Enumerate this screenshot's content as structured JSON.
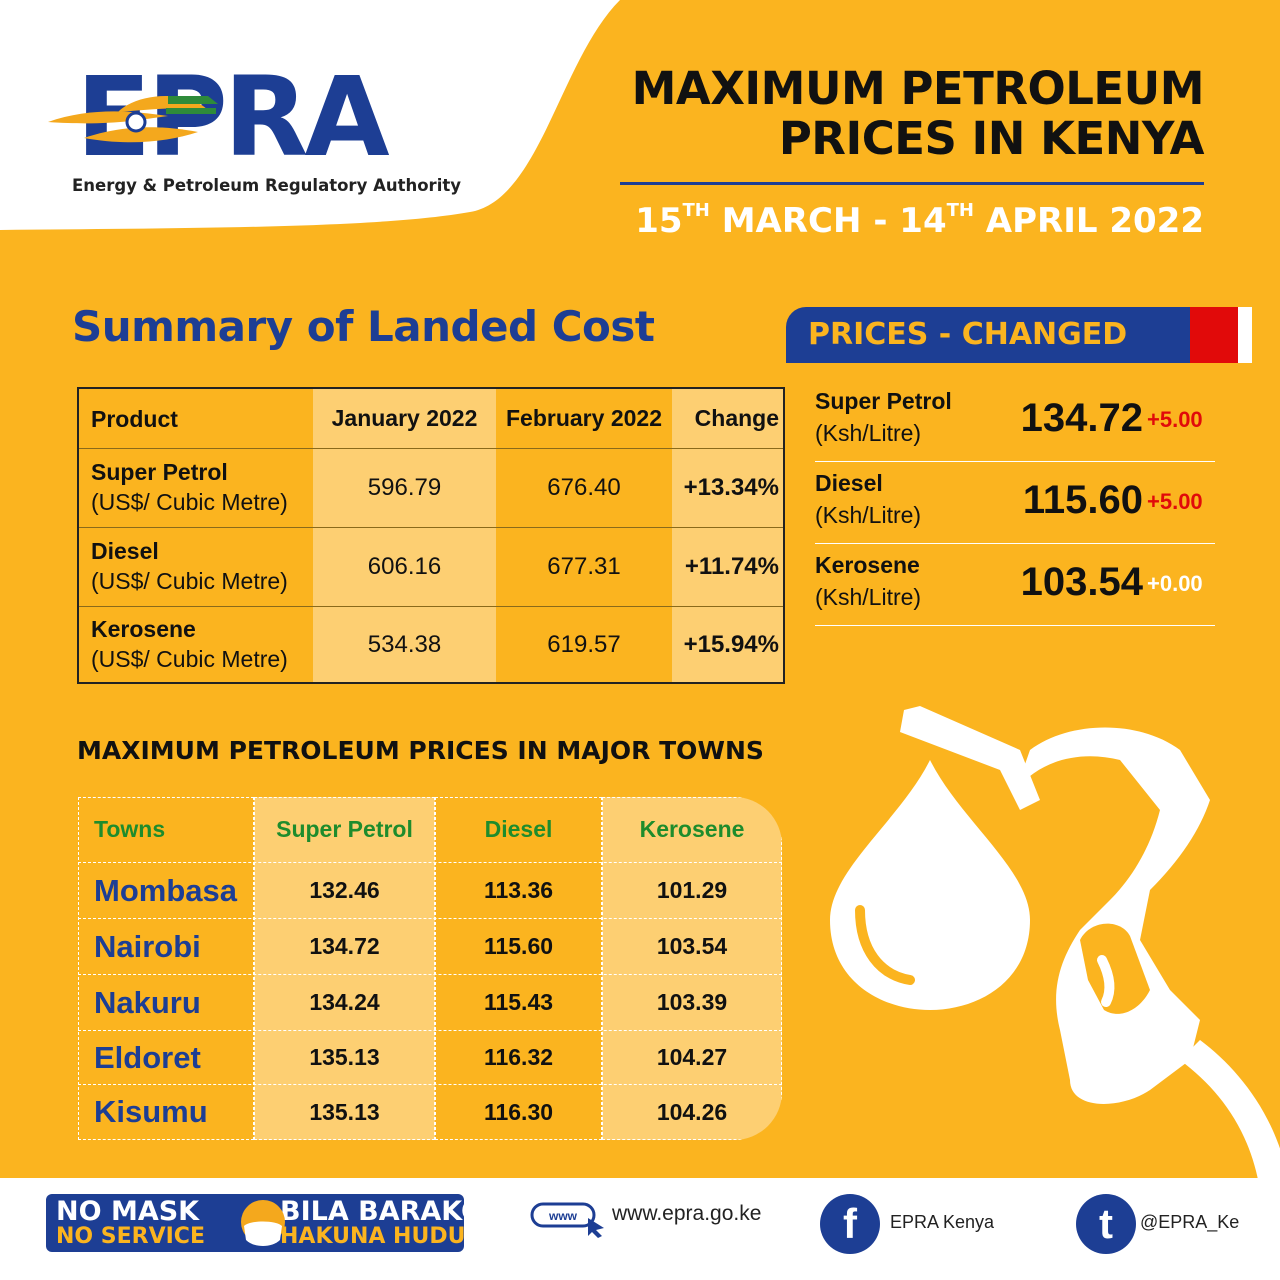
{
  "header": {
    "logo_text": "EPRA",
    "logo_subtitle": "Energy & Petroleum Regulatory Authority",
    "title_line1": "MAXIMUM PETROLEUM",
    "title_line2": "PRICES IN KENYA",
    "date_start_day": "15",
    "date_start_sup": "TH",
    "date_start_month": "MARCH",
    "date_sep": "-",
    "date_end_day": "14",
    "date_end_sup": "TH",
    "date_end_month": "APRIL 2022"
  },
  "landed_cost": {
    "title": "Summary of Landed Cost",
    "headers": [
      "Product",
      "January 2022",
      "February 2022",
      "Change"
    ],
    "rows": [
      {
        "product": "Super Petrol",
        "unit": "(US$/ Cubic Metre)",
        "jan": "596.79",
        "feb": "676.40",
        "change": "+13.34%"
      },
      {
        "product": "Diesel",
        "unit": "(US$/ Cubic Metre)",
        "jan": "606.16",
        "feb": "677.31",
        "change": "+11.74%"
      },
      {
        "product": "Kerosene",
        "unit": "(US$/ Cubic Metre)",
        "jan": "534.38",
        "feb": "619.57",
        "change": "+15.94%"
      }
    ]
  },
  "prices_changed": {
    "banner": "PRICES - CHANGED",
    "items": [
      {
        "name": "Super Petrol",
        "unit": "(Ksh/Litre)",
        "price": "134.72",
        "change": "+5.00",
        "change_color": "#E10A0A"
      },
      {
        "name": "Diesel",
        "unit": "(Ksh/Litre)",
        "price": "115.60",
        "change": "+5.00",
        "change_color": "#E10A0A"
      },
      {
        "name": "Kerosene",
        "unit": "(Ksh/Litre)",
        "price": "103.54",
        "change": "+0.00",
        "change_color": "#FFFFFF"
      }
    ]
  },
  "towns": {
    "title": "MAXIMUM PETROLEUM PRICES IN MAJOR TOWNS",
    "headers": [
      "Towns",
      "Super Petrol",
      "Diesel",
      "Kerosene"
    ],
    "rows": [
      {
        "town": "Mombasa",
        "petrol": "132.46",
        "diesel": "113.36",
        "kerosene": "101.29"
      },
      {
        "town": "Nairobi",
        "petrol": "134.72",
        "diesel": "115.60",
        "kerosene": "103.54"
      },
      {
        "town": "Nakuru",
        "petrol": "134.24",
        "diesel": "115.43",
        "kerosene": "103.39"
      },
      {
        "town": "Eldoret",
        "petrol": "135.13",
        "diesel": "116.32",
        "kerosene": "104.27"
      },
      {
        "town": "Kisumu",
        "petrol": "135.13",
        "diesel": "116.30",
        "kerosene": "104.26"
      }
    ]
  },
  "footer": {
    "mask_en_1": "NO MASK",
    "mask_en_2": "NO SERVICE",
    "mask_sw_1": "BILA BARAKOA",
    "mask_sw_2": "HAKUNA HUDUMA",
    "www_icon_label": "www",
    "website": "www.epra.go.ke",
    "facebook": "EPRA Kenya",
    "facebook_glyph": "f",
    "twitter": "@EPRA_Ke",
    "twitter_glyph": "t"
  },
  "colors": {
    "background": "#FBB41F",
    "brand_blue": "#1D3E94",
    "accent_red": "#E10A0A",
    "towns_header_green": "#1E8C2C",
    "light_column": "#FDCF72"
  },
  "icons": [
    "epra-logo-eye",
    "fuel-pump-nozzle",
    "fuel-drop",
    "face-mask",
    "www-cursor-icon",
    "facebook-icon",
    "twitter-icon"
  ]
}
